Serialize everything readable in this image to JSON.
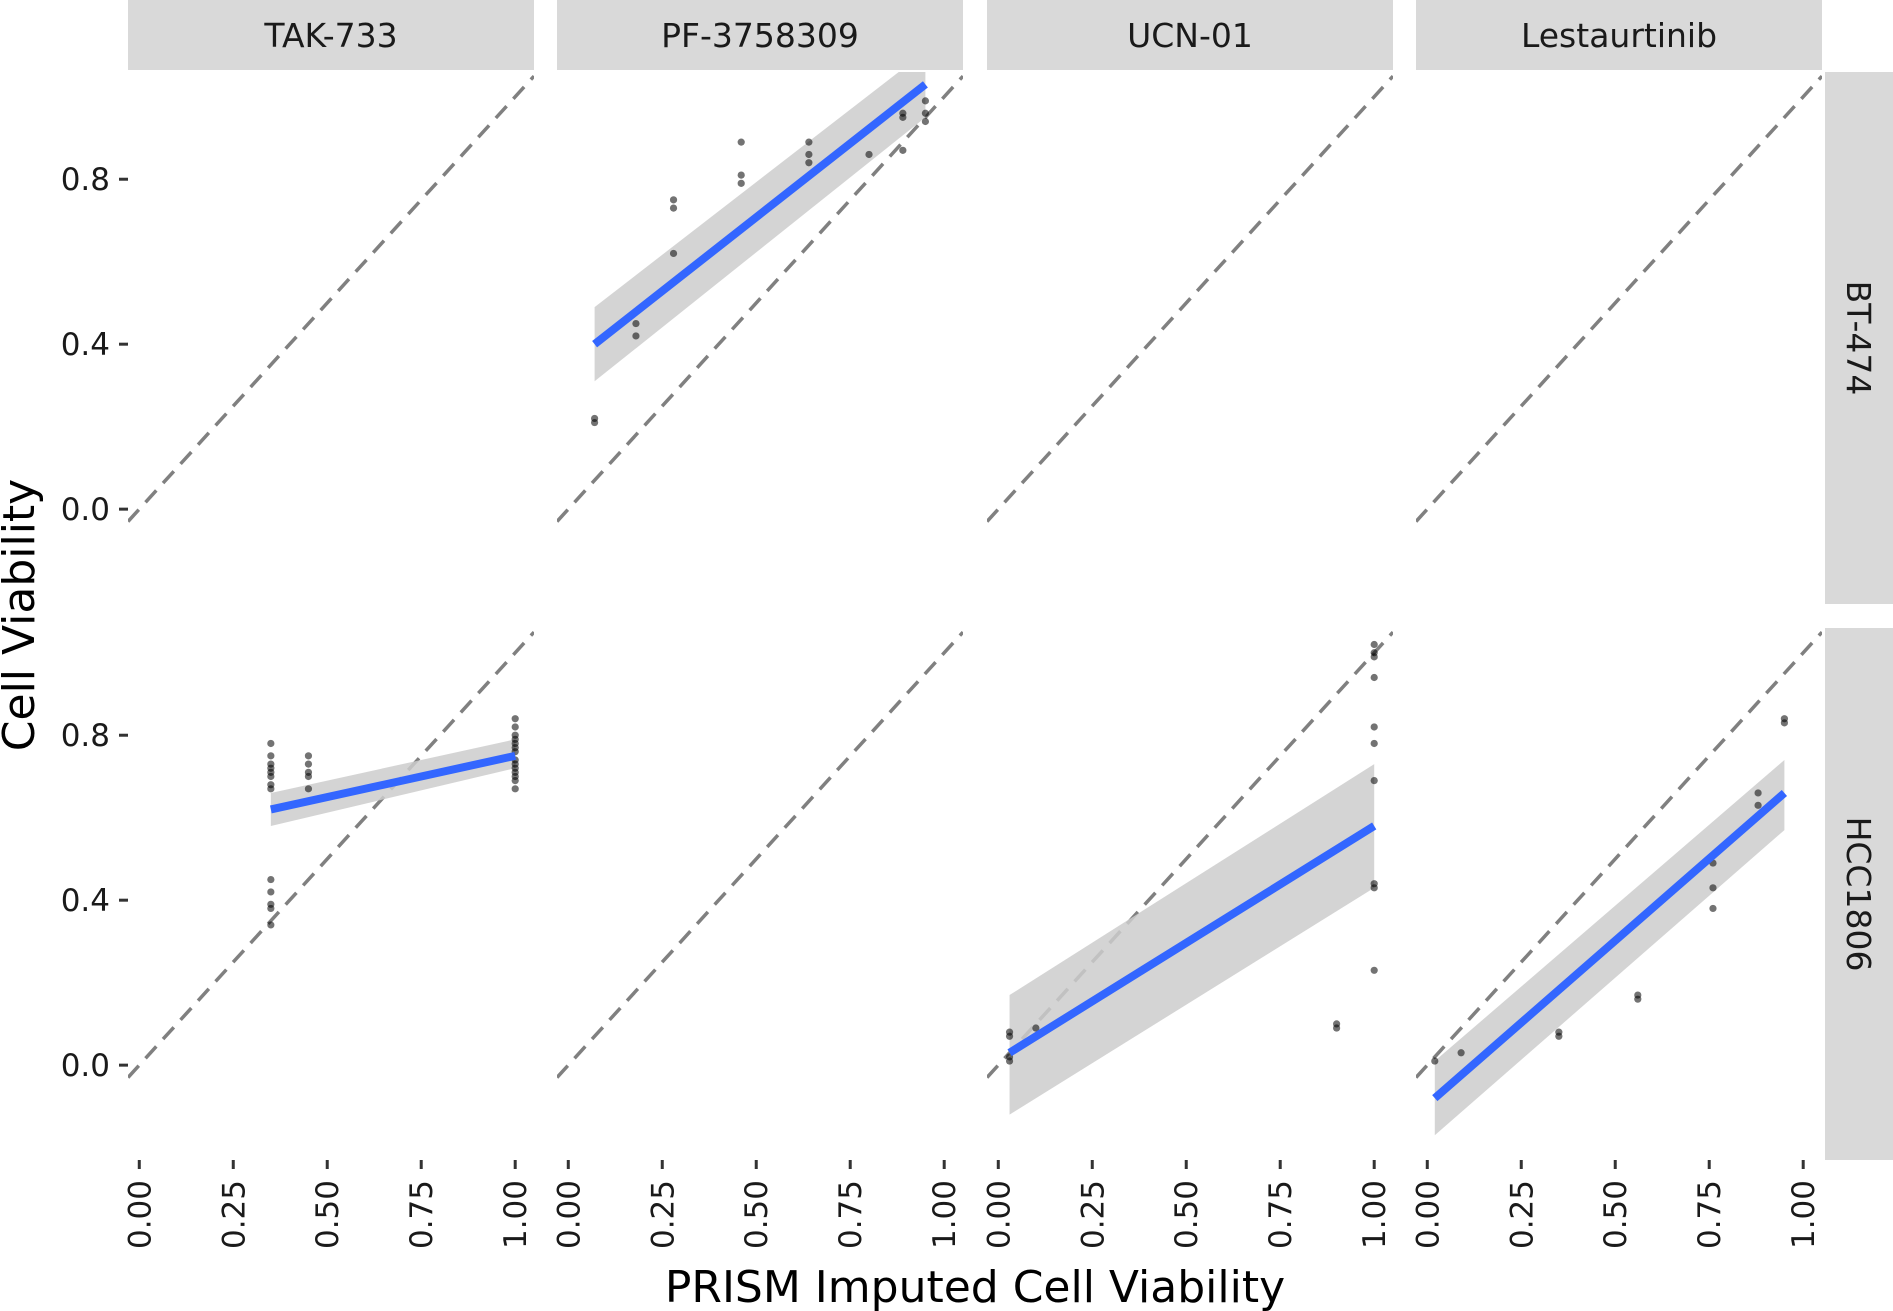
{
  "chart_data": {
    "type": "scatter",
    "xlabel": "PRISM Imputed Cell Viability",
    "ylabel": "Cell Viability",
    "xlim": [
      -0.03,
      1.05
    ],
    "ylim": [
      -0.23,
      1.06
    ],
    "x_ticks": [
      "0.00",
      "0.25",
      "0.50",
      "0.75",
      "1.00"
    ],
    "y_ticks": [
      "0.0",
      "0.4",
      "0.8"
    ],
    "grid": false,
    "legend": "none",
    "reference_line": "y = x (dashed)",
    "colors": {
      "strip_bg": "#d9d9d9",
      "fit_line": "#3366ff",
      "ribbon": "#cccccc",
      "points": "#000000",
      "reference_line": "#808080"
    },
    "columns": [
      "TAK-733",
      "PF-3758309",
      "UCN-01",
      "Lestaurtinib"
    ],
    "rows": [
      "BT-474",
      "HCC1806"
    ],
    "panels": [
      {
        "drug": "TAK-733",
        "cell_line": "BT-474",
        "points": [],
        "fit": null
      },
      {
        "drug": "PF-3758309",
        "cell_line": "BT-474",
        "points": [
          [
            0.07,
            0.22
          ],
          [
            0.07,
            0.21
          ],
          [
            0.18,
            0.45
          ],
          [
            0.18,
            0.42
          ],
          [
            0.28,
            0.75
          ],
          [
            0.28,
            0.73
          ],
          [
            0.28,
            0.62
          ],
          [
            0.46,
            0.89
          ],
          [
            0.46,
            0.81
          ],
          [
            0.46,
            0.79
          ],
          [
            0.64,
            0.89
          ],
          [
            0.64,
            0.86
          ],
          [
            0.64,
            0.84
          ],
          [
            0.8,
            0.86
          ],
          [
            0.89,
            0.96
          ],
          [
            0.89,
            0.95
          ],
          [
            0.89,
            0.87
          ],
          [
            0.95,
            0.99
          ],
          [
            0.95,
            0.96
          ],
          [
            0.95,
            0.94
          ]
        ],
        "fit": {
          "x": [
            0.07,
            0.95
          ],
          "y": [
            0.4,
            1.03
          ],
          "ci_lower": [
            0.31,
            0.95
          ],
          "ci_upper": [
            0.49,
            1.11
          ]
        }
      },
      {
        "drug": "UCN-01",
        "cell_line": "BT-474",
        "points": [],
        "fit": null
      },
      {
        "drug": "Lestaurtinib",
        "cell_line": "BT-474",
        "points": [],
        "fit": null
      },
      {
        "drug": "TAK-733",
        "cell_line": "HCC1806",
        "points": [
          [
            0.35,
            0.78
          ],
          [
            0.35,
            0.75
          ],
          [
            0.35,
            0.73
          ],
          [
            0.35,
            0.72
          ],
          [
            0.35,
            0.71
          ],
          [
            0.35,
            0.7
          ],
          [
            0.35,
            0.68
          ],
          [
            0.35,
            0.67
          ],
          [
            0.35,
            0.45
          ],
          [
            0.35,
            0.42
          ],
          [
            0.35,
            0.39
          ],
          [
            0.35,
            0.38
          ],
          [
            0.35,
            0.34
          ],
          [
            0.45,
            0.75
          ],
          [
            0.45,
            0.73
          ],
          [
            0.45,
            0.71
          ],
          [
            0.45,
            0.7
          ],
          [
            0.45,
            0.67
          ],
          [
            1.0,
            0.84
          ],
          [
            1.0,
            0.82
          ],
          [
            1.0,
            0.8
          ],
          [
            1.0,
            0.79
          ],
          [
            1.0,
            0.78
          ],
          [
            1.0,
            0.77
          ],
          [
            1.0,
            0.76
          ],
          [
            1.0,
            0.74
          ],
          [
            1.0,
            0.73
          ],
          [
            1.0,
            0.72
          ],
          [
            1.0,
            0.71
          ],
          [
            1.0,
            0.7
          ],
          [
            1.0,
            0.69
          ],
          [
            1.0,
            0.67
          ]
        ],
        "fit": {
          "x": [
            0.35,
            1.0
          ],
          "y": [
            0.62,
            0.75
          ],
          "ci_lower": [
            0.58,
            0.72
          ],
          "ci_upper": [
            0.66,
            0.79
          ]
        }
      },
      {
        "drug": "PF-3758309",
        "cell_line": "HCC1806",
        "points": [],
        "fit": null
      },
      {
        "drug": "UCN-01",
        "cell_line": "HCC1806",
        "points": [
          [
            0.03,
            0.08
          ],
          [
            0.03,
            0.07
          ],
          [
            0.03,
            0.02
          ],
          [
            0.03,
            0.01
          ],
          [
            0.1,
            0.09
          ],
          [
            0.9,
            0.1
          ],
          [
            0.9,
            0.09
          ],
          [
            1.0,
            1.02
          ],
          [
            1.0,
            1.0
          ],
          [
            1.0,
            0.99
          ],
          [
            1.0,
            0.94
          ],
          [
            1.0,
            0.82
          ],
          [
            1.0,
            0.78
          ],
          [
            1.0,
            0.69
          ],
          [
            1.0,
            0.44
          ],
          [
            1.0,
            0.43
          ],
          [
            1.0,
            0.23
          ]
        ],
        "fit": {
          "x": [
            0.03,
            1.0
          ],
          "y": [
            0.03,
            0.58
          ],
          "ci_lower": [
            -0.12,
            0.43
          ],
          "ci_upper": [
            0.17,
            0.73
          ]
        }
      },
      {
        "drug": "Lestaurtinib",
        "cell_line": "HCC1806",
        "points": [
          [
            0.02,
            0.01
          ],
          [
            0.09,
            0.03
          ],
          [
            0.35,
            0.08
          ],
          [
            0.35,
            0.07
          ],
          [
            0.56,
            0.17
          ],
          [
            0.56,
            0.16
          ],
          [
            0.76,
            0.49
          ],
          [
            0.76,
            0.43
          ],
          [
            0.76,
            0.38
          ],
          [
            0.88,
            0.66
          ],
          [
            0.88,
            0.63
          ],
          [
            0.95,
            0.84
          ],
          [
            0.95,
            0.83
          ]
        ],
        "fit": {
          "x": [
            0.02,
            0.95
          ],
          "y": [
            -0.08,
            0.66
          ],
          "ci_lower": [
            -0.17,
            0.57
          ],
          "ci_upper": [
            0.01,
            0.74
          ]
        }
      }
    ]
  }
}
